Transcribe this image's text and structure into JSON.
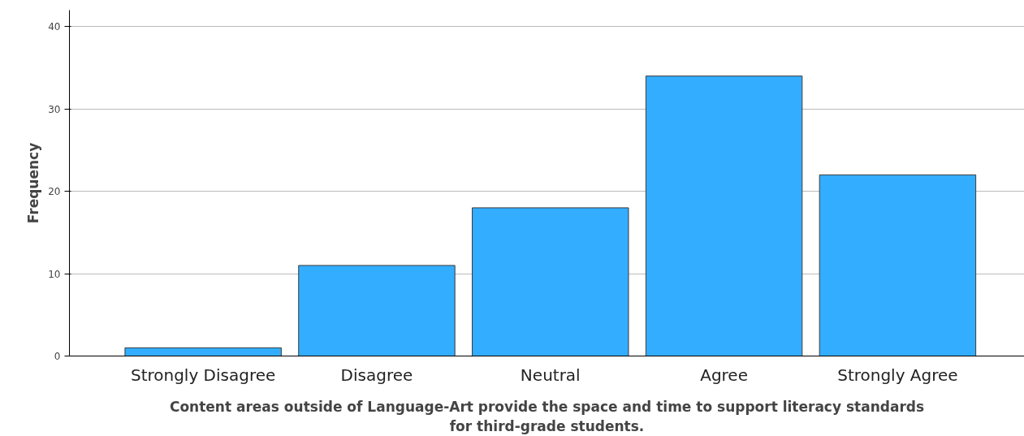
{
  "chart_data": {
    "type": "bar",
    "xlabel": "Content areas outside of Language-Art provide the space and time to support literacy standards for third-grade students.",
    "ylabel": "Frequency",
    "categories": [
      "Strongly Disagree",
      "Disagree",
      "Neutral",
      "Agree",
      "Strongly Agree"
    ],
    "values": [
      1,
      11,
      18,
      34,
      22
    ],
    "color": "#33adff",
    "ylim": [
      0,
      42
    ],
    "yticks": [
      0,
      10,
      20,
      30,
      40
    ],
    "grid": "y"
  }
}
